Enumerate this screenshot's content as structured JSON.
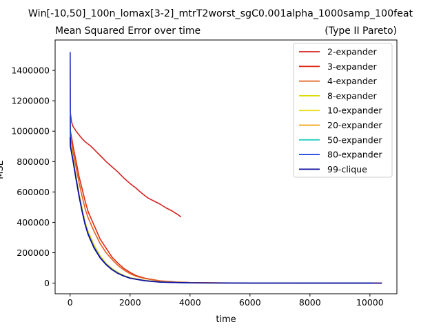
{
  "chart_data": {
    "type": "line",
    "suptitle": "Win[-10,50]_100n_lomax[3-2]_mtrT2worst_sgC0.001alpha_1000samp_100feat",
    "title": "Mean Squared Error over time",
    "title_right": "(Type II Pareto)",
    "xlabel": "time",
    "ylabel": "MSE",
    "xlim": [
      -500,
      10900
    ],
    "ylim": [
      -70000,
      1600000
    ],
    "xticks": [
      0,
      2000,
      4000,
      6000,
      8000,
      10000
    ],
    "yticks": [
      0,
      200000,
      400000,
      600000,
      800000,
      1000000,
      1200000,
      1400000
    ],
    "xtick_labels": [
      "0",
      "2000",
      "4000",
      "6000",
      "8000",
      "10000"
    ],
    "ytick_labels": [
      "0",
      "200000",
      "400000",
      "600000",
      "800000",
      "1000000",
      "1200000",
      "1400000"
    ],
    "legend_position": "top-right",
    "series": [
      {
        "name": "2-expander",
        "color": "#d62020",
        "x": [
          0,
          10,
          50,
          100,
          200,
          300,
          400,
          500,
          600,
          700,
          800,
          900,
          1000,
          1200,
          1400,
          1600,
          1800,
          2000,
          2200,
          2400,
          2600,
          2800,
          3000,
          3200,
          3400,
          3600,
          3700
        ],
        "y": [
          1520000,
          1120000,
          1060000,
          1030000,
          1000000,
          975000,
          950000,
          930000,
          915000,
          900000,
          880000,
          860000,
          840000,
          800000,
          765000,
          730000,
          690000,
          655000,
          625000,
          590000,
          560000,
          540000,
          520000,
          495000,
          475000,
          450000,
          435000
        ]
      },
      {
        "name": "3-expander",
        "color": "#e02810",
        "x": [
          0,
          10,
          50,
          100,
          200,
          300,
          400,
          500,
          600,
          800,
          1000,
          1200,
          1400,
          1600,
          1800,
          2000,
          2200,
          2500,
          3000,
          3500,
          4000,
          5000,
          6000,
          8000,
          10400
        ],
        "y": [
          1100000,
          1000000,
          960000,
          900000,
          800000,
          700000,
          620000,
          540000,
          470000,
          380000,
          290000,
          230000,
          170000,
          130000,
          95000,
          70000,
          50000,
          32000,
          15000,
          8000,
          4000,
          1500,
          500,
          100,
          0
        ]
      },
      {
        "name": "4-expander",
        "color": "#e0601e",
        "x": [
          0,
          10,
          50,
          100,
          200,
          300,
          400,
          500,
          600,
          800,
          1000,
          1200,
          1400,
          1600,
          1800,
          2000,
          2200,
          2500,
          3000,
          3500,
          4000,
          5000,
          6000,
          8000,
          10400
        ],
        "y": [
          1050000,
          960000,
          920000,
          860000,
          760000,
          660000,
          570000,
          490000,
          430000,
          340000,
          260000,
          200000,
          155000,
          115000,
          85000,
          62000,
          45000,
          30000,
          14000,
          7000,
          3500,
          1200,
          400,
          100,
          0
        ]
      },
      {
        "name": "8-expander",
        "color": "#dcdc00",
        "x": [
          0,
          10,
          50,
          100,
          200,
          300,
          400,
          500,
          600,
          800,
          1000,
          1200,
          1400,
          1600,
          1800,
          2000,
          2500,
          3000,
          4000,
          6000,
          10100
        ],
        "y": [
          990000,
          920000,
          880000,
          820000,
          700000,
          590000,
          490000,
          400000,
          340000,
          250000,
          180000,
          130000,
          95000,
          70000,
          50000,
          36000,
          18000,
          8000,
          2000,
          200,
          0
        ]
      },
      {
        "name": "10-expander",
        "color": "#e8e020",
        "x": [
          0,
          10,
          50,
          100,
          200,
          300,
          400,
          500,
          600,
          800,
          1000,
          1200,
          1400,
          1600,
          1800,
          2000,
          2500,
          3000,
          4000,
          6000,
          10100
        ],
        "y": [
          980000,
          910000,
          870000,
          815000,
          695000,
          585000,
          485000,
          400000,
          335000,
          245000,
          175000,
          128000,
          93000,
          68000,
          49000,
          35000,
          17000,
          7500,
          1800,
          200,
          0
        ]
      },
      {
        "name": "20-expander",
        "color": "#f0a010",
        "x": [
          0,
          10,
          50,
          100,
          200,
          300,
          400,
          500,
          600,
          800,
          1000,
          1200,
          1400,
          1600,
          1800,
          2000,
          2500,
          3000,
          4000,
          6000,
          10100
        ],
        "y": [
          970000,
          905000,
          865000,
          810000,
          690000,
          580000,
          480000,
          395000,
          330000,
          240000,
          172000,
          126000,
          91000,
          66000,
          48000,
          34000,
          16500,
          7200,
          1700,
          200,
          0
        ]
      },
      {
        "name": "50-expander",
        "color": "#20d0c0",
        "x": [
          0,
          10,
          50,
          100,
          200,
          300,
          400,
          500,
          600,
          800,
          1000,
          1200,
          1400,
          1600,
          1800,
          2000,
          2500,
          3000,
          4000,
          6000,
          10100
        ],
        "y": [
          965000,
          900000,
          860000,
          805000,
          685000,
          575000,
          475000,
          390000,
          325000,
          235000,
          170000,
          124000,
          90000,
          65000,
          47000,
          33000,
          16000,
          7000,
          1600,
          200,
          0
        ]
      },
      {
        "name": "80-expander",
        "color": "#1840e0",
        "x": [
          0,
          10,
          50,
          100,
          200,
          300,
          400,
          500,
          600,
          800,
          1000,
          1200,
          1400,
          1600,
          1800,
          2000,
          2500,
          3000,
          4000,
          6000,
          10100
        ],
        "y": [
          1520000,
          900000,
          858000,
          803000,
          683000,
          573000,
          473000,
          388000,
          323000,
          233000,
          168000,
          123000,
          89000,
          64000,
          46000,
          32500,
          15800,
          6900,
          1600,
          200,
          0
        ]
      },
      {
        "name": "99-clique",
        "color": "#0c0ca0",
        "x": [
          0,
          10,
          50,
          100,
          200,
          300,
          400,
          500,
          600,
          800,
          1000,
          1200,
          1400,
          1600,
          1800,
          2000,
          2500,
          3000,
          4000,
          6000,
          10400
        ],
        "y": [
          960000,
          898000,
          856000,
          800000,
          680000,
          570000,
          470000,
          385000,
          320000,
          230000,
          166000,
          121000,
          88000,
          63000,
          45500,
          32000,
          15500,
          6800,
          1500,
          200,
          0
        ]
      }
    ]
  }
}
